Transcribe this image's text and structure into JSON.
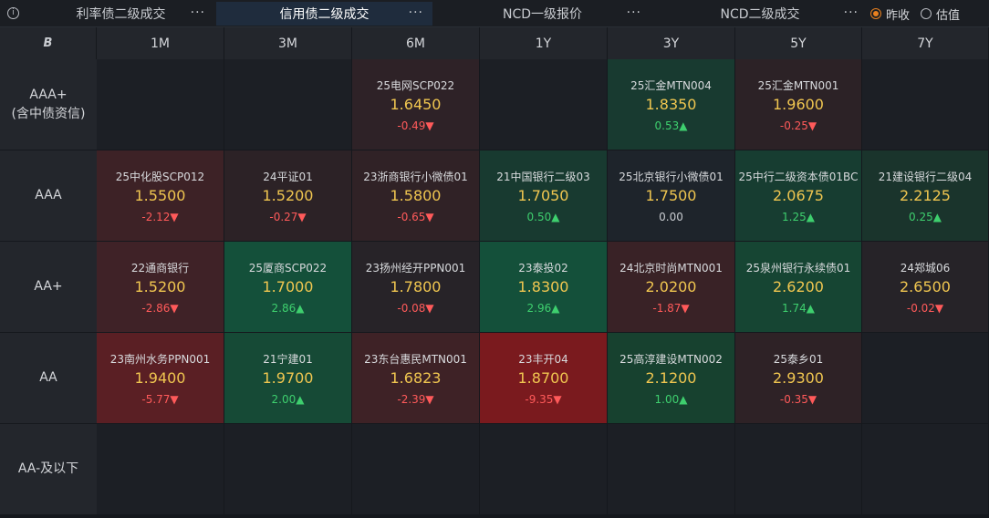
{
  "tabs": [
    {
      "label": "利率债二级成交",
      "active": false
    },
    {
      "label": "信用债二级成交",
      "active": true
    },
    {
      "label": "NCD一级报价",
      "active": false
    },
    {
      "label": "NCD二级成交",
      "active": false
    }
  ],
  "more_label": "···",
  "info_icon": "i",
  "radio": [
    {
      "label": "昨收",
      "checked": true
    },
    {
      "label": "估值",
      "checked": false
    }
  ],
  "header_logo": "B",
  "columns": [
    "1M",
    "3M",
    "6M",
    "1Y",
    "3Y",
    "5Y",
    "7Y"
  ],
  "rows": [
    {
      "label": "AAA+\n(含中债资信)",
      "cells": [
        null,
        null,
        {
          "name": "25电网SCP022",
          "price": "1.6450",
          "chg": "-0.49▼",
          "dir": "down",
          "bg": "#2e2227"
        },
        null,
        {
          "name": "25汇金MTN004",
          "price": "1.8350",
          "chg": "0.53▲",
          "dir": "up",
          "bg": "#183a30"
        },
        {
          "name": "25汇金MTN001",
          "price": "1.9600",
          "chg": "-0.25▼",
          "dir": "down",
          "bg": "#2c2226"
        },
        null
      ]
    },
    {
      "label": "AAA",
      "cells": [
        {
          "name": "25中化股SCP012",
          "price": "1.5500",
          "chg": "-2.12▼",
          "dir": "down",
          "bg": "#3d2226"
        },
        {
          "name": "24平证01",
          "price": "1.5200",
          "chg": "-0.27▼",
          "dir": "down",
          "bg": "#2c2226"
        },
        {
          "name": "23浙商银行小微债01",
          "price": "1.5800",
          "chg": "-0.65▼",
          "dir": "down",
          "bg": "#302226"
        },
        {
          "name": "21中国银行二级03",
          "price": "1.7050",
          "chg": "0.50▲",
          "dir": "up",
          "bg": "#183a30"
        },
        {
          "name": "25北京银行小微债01",
          "price": "1.7500",
          "chg": "0.00",
          "dir": "flat",
          "bg": "#1e242b"
        },
        {
          "name": "25中行二级资本债01BC",
          "price": "2.0675",
          "chg": "1.25▲",
          "dir": "up",
          "bg": "#173d31"
        },
        {
          "name": "21建设银行二级04",
          "price": "2.2125",
          "chg": "0.25▲",
          "dir": "up",
          "bg": "#1a342c"
        }
      ]
    },
    {
      "label": "AA+",
      "cells": [
        {
          "name": "22通商银行",
          "price": "1.5200",
          "chg": "-2.86▼",
          "dir": "down",
          "bg": "#3f2227"
        },
        {
          "name": "25厦商SCP022",
          "price": "1.7000",
          "chg": "2.86▲",
          "dir": "up",
          "bg": "#14503a"
        },
        {
          "name": "23扬州经开PPN001",
          "price": "1.7800",
          "chg": "-0.08▼",
          "dir": "down",
          "bg": "#272328"
        },
        {
          "name": "23泰投02",
          "price": "1.8300",
          "chg": "2.96▲",
          "dir": "up",
          "bg": "#14503a"
        },
        {
          "name": "24北京时尚MTN001",
          "price": "2.0200",
          "chg": "-1.87▼",
          "dir": "down",
          "bg": "#392226"
        },
        {
          "name": "25泉州银行永续债01",
          "price": "2.6200",
          "chg": "1.74▲",
          "dir": "up",
          "bg": "#164533"
        },
        {
          "name": "24郑城06",
          "price": "2.6500",
          "chg": "-0.02▼",
          "dir": "down",
          "bg": "#262328"
        }
      ]
    },
    {
      "label": "AA",
      "cells": [
        {
          "name": "23南州水务PPN001",
          "price": "1.9400",
          "chg": "-5.77▼",
          "dir": "down",
          "bg": "#5a1f24"
        },
        {
          "name": "21宁建01",
          "price": "1.9700",
          "chg": "2.00▲",
          "dir": "up",
          "bg": "#164a36"
        },
        {
          "name": "23东台惠民MTN001",
          "price": "1.6823",
          "chg": "-2.39▼",
          "dir": "down",
          "bg": "#3e2226"
        },
        {
          "name": "23丰开04",
          "price": "1.8700",
          "chg": "-9.35▼",
          "dir": "down",
          "bg": "#7a1a1e"
        },
        {
          "name": "25高淳建设MTN002",
          "price": "2.1200",
          "chg": "1.00▲",
          "dir": "up",
          "bg": "#17412f"
        },
        {
          "name": "25泰乡01",
          "price": "2.9300",
          "chg": "-0.35▼",
          "dir": "down",
          "bg": "#2e2226"
        },
        null
      ]
    },
    {
      "label": "AA-及以下",
      "cells": [
        null,
        null,
        null,
        null,
        null,
        null,
        null
      ]
    }
  ]
}
